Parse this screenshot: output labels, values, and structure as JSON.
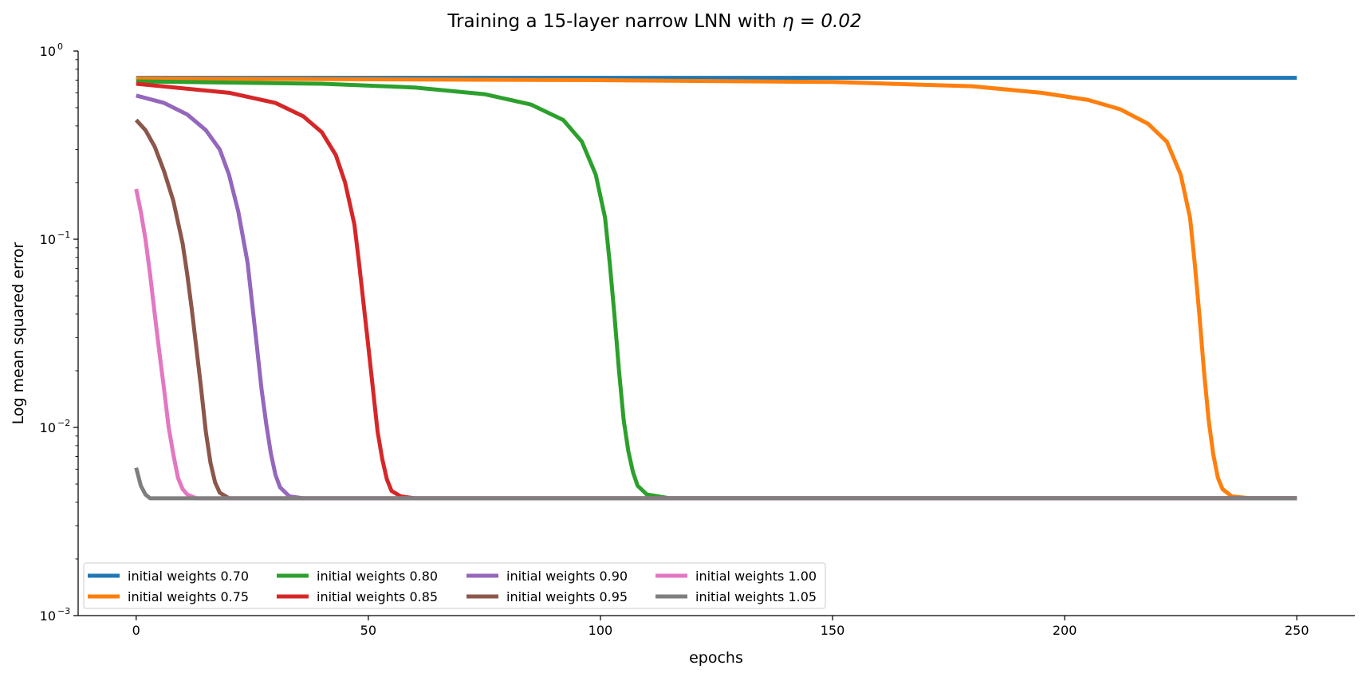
{
  "chart_data": {
    "type": "line",
    "title": "Training a 15-layer narrow LNN with ",
    "title_math": "η = 0.02",
    "xlabel": "epochs",
    "ylabel": "Log mean squared error",
    "x_scale": "linear",
    "y_scale": "log",
    "xlim": [
      -12.5,
      262.5
    ],
    "ylim": [
      0.001,
      1
    ],
    "x_ticks": [
      0,
      50,
      100,
      150,
      200,
      250
    ],
    "y_ticks": [
      {
        "value": 1,
        "base": "10",
        "exp": "0"
      },
      {
        "value": 0.1,
        "base": "10",
        "exp": "−1"
      },
      {
        "value": 0.01,
        "base": "10",
        "exp": "−2"
      },
      {
        "value": 0.001,
        "base": "10",
        "exp": "−3"
      }
    ],
    "grid": false,
    "legend_position": "lower-left",
    "legend_columns": 4,
    "series": [
      {
        "name": "initial weights 0.70",
        "color": "#1f77b4",
        "points": [
          [
            0,
            0.72
          ],
          [
            250,
            0.72
          ]
        ]
      },
      {
        "name": "initial weights 0.75",
        "color": "#ff7f0e",
        "points": [
          [
            0,
            0.715
          ],
          [
            100,
            0.7
          ],
          [
            150,
            0.685
          ],
          [
            180,
            0.65
          ],
          [
            195,
            0.6
          ],
          [
            205,
            0.55
          ],
          [
            212,
            0.49
          ],
          [
            218,
            0.41
          ],
          [
            222,
            0.33
          ],
          [
            225,
            0.22
          ],
          [
            227,
            0.13
          ],
          [
            228,
            0.075
          ],
          [
            229,
            0.04
          ],
          [
            230,
            0.02
          ],
          [
            231,
            0.011
          ],
          [
            232,
            0.0072
          ],
          [
            233,
            0.0054
          ],
          [
            234,
            0.0047
          ],
          [
            236,
            0.0043
          ],
          [
            240,
            0.0042
          ],
          [
            250,
            0.0042
          ]
        ]
      },
      {
        "name": "initial weights 0.80",
        "color": "#2ca02c",
        "points": [
          [
            0,
            0.69
          ],
          [
            40,
            0.67
          ],
          [
            60,
            0.64
          ],
          [
            75,
            0.59
          ],
          [
            85,
            0.52
          ],
          [
            92,
            0.43
          ],
          [
            96,
            0.33
          ],
          [
            99,
            0.22
          ],
          [
            101,
            0.13
          ],
          [
            102,
            0.075
          ],
          [
            103,
            0.04
          ],
          [
            104,
            0.02
          ],
          [
            105,
            0.011
          ],
          [
            106,
            0.0075
          ],
          [
            107,
            0.0058
          ],
          [
            108,
            0.0049
          ],
          [
            110,
            0.0044
          ],
          [
            115,
            0.0042
          ],
          [
            250,
            0.0042
          ]
        ]
      },
      {
        "name": "initial weights 0.85",
        "color": "#d62728",
        "points": [
          [
            0,
            0.67
          ],
          [
            20,
            0.6
          ],
          [
            30,
            0.53
          ],
          [
            36,
            0.45
          ],
          [
            40,
            0.37
          ],
          [
            43,
            0.28
          ],
          [
            45,
            0.2
          ],
          [
            47,
            0.12
          ],
          [
            48,
            0.075
          ],
          [
            49,
            0.045
          ],
          [
            50,
            0.027
          ],
          [
            51,
            0.016
          ],
          [
            52,
            0.0095
          ],
          [
            53,
            0.0068
          ],
          [
            54,
            0.0053
          ],
          [
            55,
            0.0046
          ],
          [
            57,
            0.0043
          ],
          [
            60,
            0.0042
          ],
          [
            250,
            0.0042
          ]
        ]
      },
      {
        "name": "initial weights 0.90",
        "color": "#9467bd",
        "points": [
          [
            0,
            0.58
          ],
          [
            6,
            0.53
          ],
          [
            11,
            0.46
          ],
          [
            15,
            0.38
          ],
          [
            18,
            0.3
          ],
          [
            20,
            0.22
          ],
          [
            22,
            0.14
          ],
          [
            24,
            0.075
          ],
          [
            25,
            0.045
          ],
          [
            26,
            0.027
          ],
          [
            27,
            0.016
          ],
          [
            28,
            0.0105
          ],
          [
            29,
            0.0073
          ],
          [
            30,
            0.0056
          ],
          [
            31,
            0.0048
          ],
          [
            33,
            0.0043
          ],
          [
            36,
            0.0042
          ],
          [
            250,
            0.0042
          ]
        ]
      },
      {
        "name": "initial weights 0.95",
        "color": "#8c564b",
        "points": [
          [
            0,
            0.43
          ],
          [
            2,
            0.38
          ],
          [
            4,
            0.31
          ],
          [
            6,
            0.23
          ],
          [
            8,
            0.16
          ],
          [
            10,
            0.095
          ],
          [
            11,
            0.065
          ],
          [
            12,
            0.042
          ],
          [
            13,
            0.026
          ],
          [
            14,
            0.016
          ],
          [
            15,
            0.0095
          ],
          [
            16,
            0.0065
          ],
          [
            17,
            0.0051
          ],
          [
            18,
            0.0045
          ],
          [
            20,
            0.0042
          ],
          [
            250,
            0.0042
          ]
        ]
      },
      {
        "name": "initial weights 1.00",
        "color": "#e377c2",
        "points": [
          [
            0,
            0.185
          ],
          [
            1,
            0.14
          ],
          [
            2,
            0.1
          ],
          [
            3,
            0.065
          ],
          [
            4,
            0.04
          ],
          [
            5,
            0.025
          ],
          [
            6,
            0.016
          ],
          [
            7,
            0.01
          ],
          [
            8,
            0.0072
          ],
          [
            9,
            0.0054
          ],
          [
            10,
            0.0047
          ],
          [
            11,
            0.0044
          ],
          [
            13,
            0.0042
          ],
          [
            250,
            0.0042
          ]
        ]
      },
      {
        "name": "initial weights 1.05",
        "color": "#7f7f7f",
        "points": [
          [
            0,
            0.0061
          ],
          [
            1,
            0.0049
          ],
          [
            2,
            0.0044
          ],
          [
            3,
            0.0042
          ],
          [
            4,
            0.0042
          ],
          [
            250,
            0.0042
          ]
        ]
      }
    ]
  }
}
